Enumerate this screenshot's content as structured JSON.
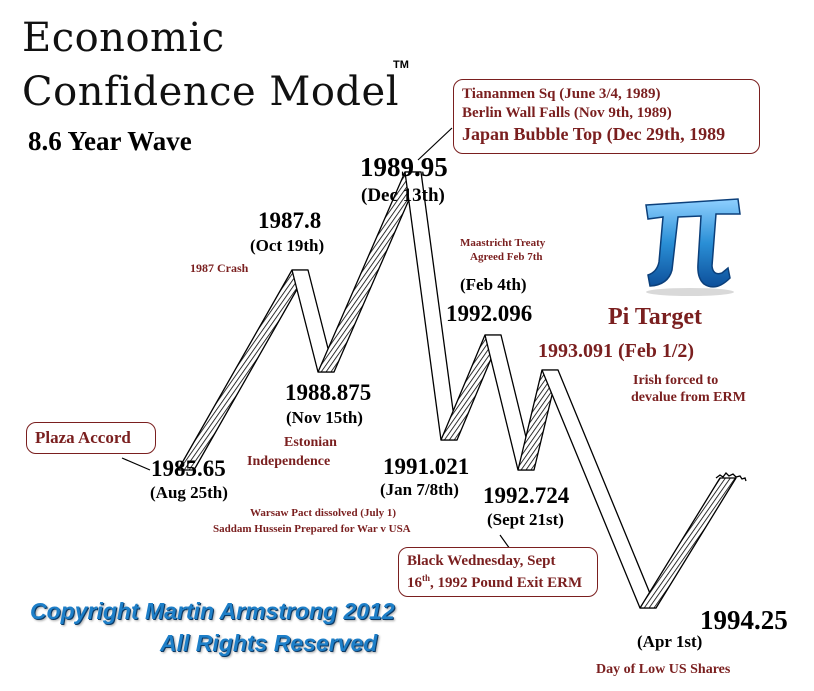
{
  "title_line1": "Economic",
  "title_line2": "Confidence Model",
  "trademark": "TM",
  "subtitle": "8.6 Year Wave",
  "callouts": {
    "plaza": "Plaza Accord",
    "events_1989": [
      "Tiananmen Sq (June 3/4, 1989)",
      "Berlin Wall Falls (Nov 9th, 1989)",
      "Japan Bubble Top (Dec 29th, 1989"
    ],
    "black_wednesday_1": "Black Wednesday, Sept",
    "black_wednesday_2a": "16",
    "black_wednesday_2sup": "th",
    "black_wednesday_2b": ", 1992 Pound Exit ERM"
  },
  "turning_points": [
    {
      "year": "1985.65",
      "date": "(Aug 25th)"
    },
    {
      "year": "1987.8",
      "date": "(Oct 19th)"
    },
    {
      "year": "1988.875",
      "date": "(Nov 15th)"
    },
    {
      "year": "1989.95",
      "date": "(Dec 13th)"
    },
    {
      "year": "1991.021",
      "date": "(Jan 7/8th)"
    },
    {
      "year": "1992.096",
      "date": "(Feb 4th)"
    },
    {
      "year": "1992.724",
      "date": "(Sept 21st)"
    },
    {
      "year": "1993.091",
      "date": "(Feb 1/2)"
    },
    {
      "year": "1994.25",
      "date": "(Apr 1st)"
    }
  ],
  "notes": {
    "crash_1987": "1987 Crash",
    "estonian_1": "Estonian",
    "estonian_2": "Independence",
    "maastricht_1": "Maastricht Treaty",
    "maastricht_2": "Agreed Feb 7th",
    "warsaw": "Warsaw Pact dissolved (July 1)",
    "saddam": "Saddam Hussein Prepared for War v USA",
    "irish_1": "Irish forced to",
    "irish_2": "devalue from ERM",
    "low_us_shares": "Day of Low US Shares"
  },
  "pi_target": "Pi Target",
  "copyright_line1": "Copyright Martin Armstrong 2012",
  "copyright_line2": "All Rights Reserved",
  "colors": {
    "annotation": "#7a1f1f",
    "pi_symbol": "#2a8fd6",
    "copyright": "#1e7fc8",
    "wave_stroke": "#000000"
  },
  "icons": {
    "pi": "pi-symbol-icon"
  }
}
